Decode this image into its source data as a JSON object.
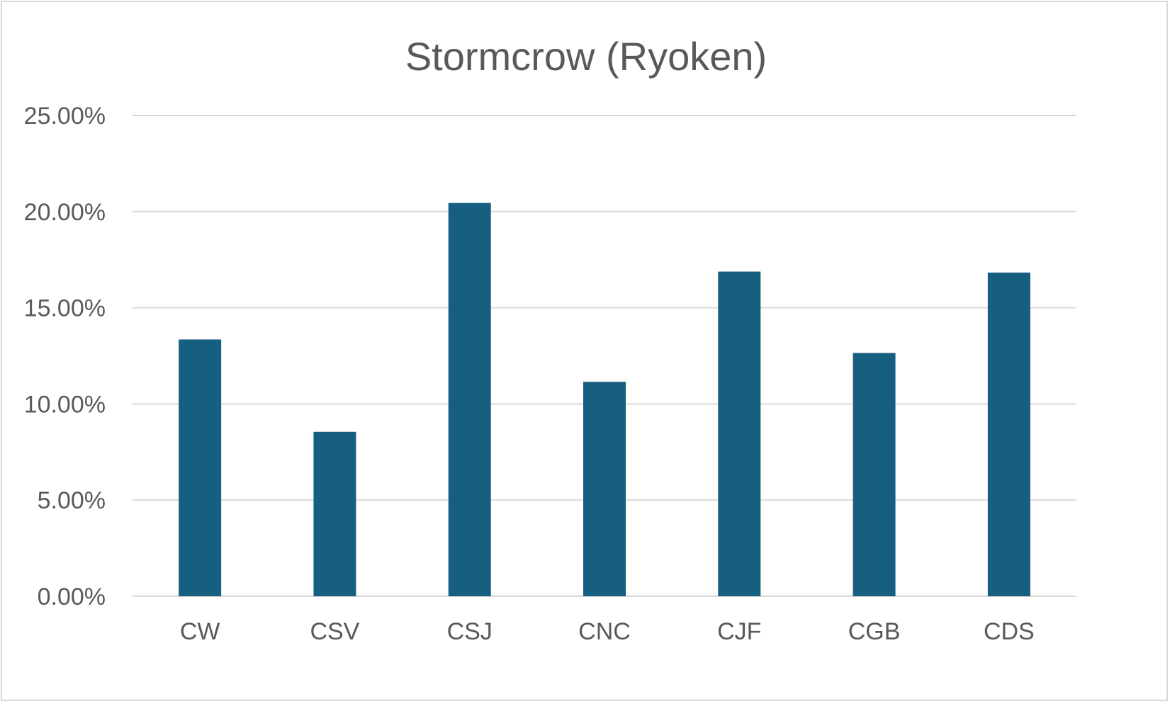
{
  "chart_data": {
    "type": "bar",
    "title": "Stormcrow (Ryoken)",
    "categories": [
      "CW",
      "CSV",
      "CSJ",
      "CNC",
      "CJF",
      "CGB",
      "CDS"
    ],
    "series": [
      {
        "values": [
          13.35,
          8.55,
          20.45,
          11.15,
          16.88,
          12.65,
          16.83
        ]
      }
    ],
    "values": [
      13.35,
      8.55,
      20.45,
      11.15,
      16.88,
      12.65,
      16.83
    ],
    "ylim": [
      0,
      25
    ],
    "yticks": [
      0,
      5,
      10,
      15,
      20,
      25
    ],
    "ytick_labels": [
      "0.00%",
      "5.00%",
      "10.00%",
      "15.00%",
      "20.00%",
      "25.00%"
    ],
    "grid": true,
    "legend": "none",
    "colors": {
      "bar": "#175f80",
      "grid": "#d9d9d9",
      "text": "#595959"
    }
  }
}
